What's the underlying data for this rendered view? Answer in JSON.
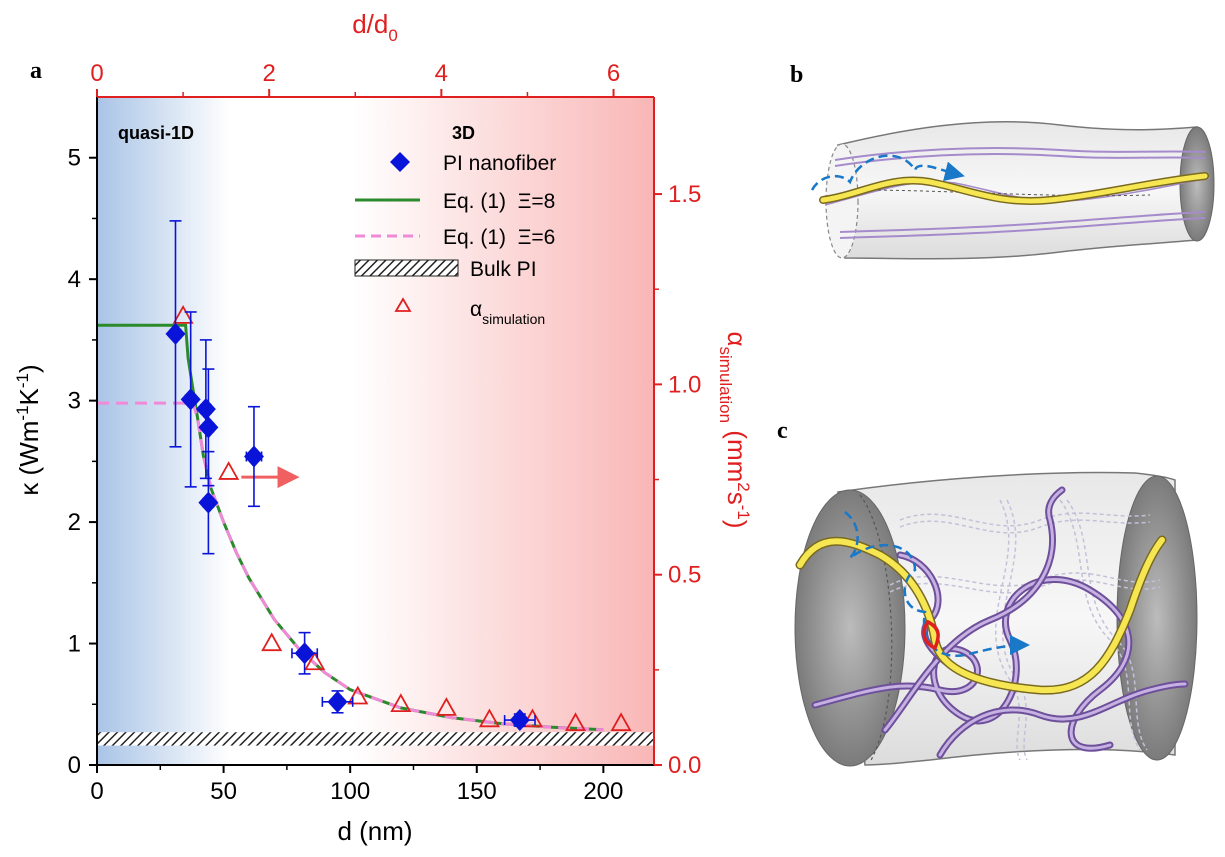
{
  "panels": {
    "a": "a",
    "b": "b",
    "c": "c"
  },
  "region_labels": {
    "left": "quasi-1D",
    "right": "3D"
  },
  "chart_data": {
    "type": "scatter",
    "x_bottom": {
      "label": "d (nm)",
      "range": [
        0,
        220
      ],
      "ticks": [
        0,
        50,
        100,
        150,
        200
      ]
    },
    "x_top": {
      "label_main": "d/d",
      "label_sub": "0",
      "range": [
        0,
        6.47
      ],
      "ticks": [
        0,
        2,
        4,
        6
      ]
    },
    "y_left": {
      "label_main": "κ (Wm",
      "label_sup1": "-1",
      "label_mid": "K",
      "label_sup2": "-1",
      "label_end": ")",
      "range": [
        0,
        5.5
      ],
      "ticks": [
        0,
        1,
        2,
        3,
        4,
        5
      ]
    },
    "y_right": {
      "label_main": "α",
      "label_sub": "simulation",
      "label_unit_a": " (mm",
      "label_sup1": "2",
      "label_unit_b": "s",
      "label_sup2": "-1",
      "label_unit_c": ")",
      "range": [
        0,
        1.755
      ],
      "ticks": [
        "0.0",
        "0.5",
        "1.0",
        "1.5"
      ]
    },
    "legend": {
      "placement": "top-right",
      "items": [
        {
          "label": "PI nanofiber"
        },
        {
          "label": "Eq. (1)  Ξ=8"
        },
        {
          "label": "Eq. (1)  Ξ=6"
        },
        {
          "label": "Bulk PI"
        },
        {
          "label_main": "α",
          "label_sub": "simulation"
        }
      ]
    },
    "series": [
      {
        "name": "PI nanofiber",
        "color": "#0a14d8",
        "marker": "diamond",
        "points": [
          {
            "x": 31,
            "y": 3.55,
            "yerr": 0.93,
            "xerr": 2
          },
          {
            "x": 37,
            "y": 3.01,
            "yerr": 0.72,
            "xerr": 2
          },
          {
            "x": 43,
            "y": 2.93,
            "yerr": 0.57,
            "xerr": 2
          },
          {
            "x": 44,
            "y": 2.78,
            "yerr": 0.48,
            "xerr": 2
          },
          {
            "x": 44,
            "y": 2.16,
            "yerr": 0.42,
            "xerr": 2
          },
          {
            "x": 62,
            "y": 2.54,
            "yerr": 0.41,
            "xerr": 3
          },
          {
            "x": 82,
            "y": 0.92,
            "yerr": 0.17,
            "xerr": 5
          },
          {
            "x": 95,
            "y": 0.52,
            "yerr": 0.09,
            "xerr": 6
          },
          {
            "x": 167,
            "y": 0.37,
            "yerr": 0.05,
            "xerr": 6
          }
        ]
      },
      {
        "name": "α simulation",
        "color": "#e02020",
        "marker": "open-triangle",
        "axis": "right",
        "x": [
          34,
          52,
          69,
          86,
          103,
          120,
          138,
          155,
          172,
          189,
          207
        ],
        "y": [
          1.18,
          0.77,
          0.32,
          0.27,
          0.18,
          0.16,
          0.15,
          0.12,
          0.12,
          0.11,
          0.11
        ]
      },
      {
        "name": "Eq. (1)  Ξ=8",
        "color": "#2b8a2b",
        "style": "solid",
        "x": [
          0,
          35,
          36,
          38,
          40,
          42,
          45,
          50,
          55,
          60,
          70,
          80,
          90,
          100,
          120,
          140,
          160,
          180,
          200
        ],
        "y": [
          3.62,
          3.62,
          3.35,
          3.08,
          2.82,
          2.55,
          2.28,
          2.0,
          1.75,
          1.54,
          1.2,
          0.95,
          0.76,
          0.62,
          0.47,
          0.39,
          0.34,
          0.31,
          0.29
        ]
      },
      {
        "name": "Eq. (1)  Ξ=6",
        "color": "#f08ad8",
        "style": "dashed",
        "x": [
          0,
          38,
          40,
          42,
          45,
          50,
          55,
          60,
          70,
          80,
          90,
          100,
          120,
          140,
          160,
          180,
          200
        ],
        "y": [
          2.98,
          2.98,
          2.82,
          2.55,
          2.28,
          2.0,
          1.75,
          1.54,
          1.2,
          0.95,
          0.76,
          0.62,
          0.47,
          0.39,
          0.34,
          0.31,
          0.29
        ]
      }
    ],
    "bulk_band": {
      "name": "Bulk PI",
      "y_range": [
        0.16,
        0.27
      ]
    },
    "arrow": {
      "from_x": 57,
      "to_x": 80,
      "y": 2.37,
      "color": "#f06060"
    },
    "colors": {
      "left_axis": "#000000",
      "right_axis": "#e02020",
      "bg_blue": "#a9c4e6",
      "bg_pink": "#f9b6b6"
    }
  }
}
